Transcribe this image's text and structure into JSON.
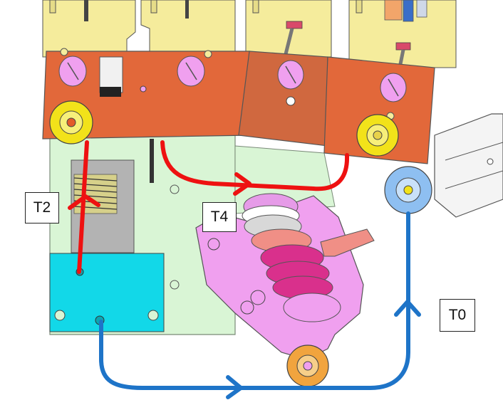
{
  "labels": {
    "t2": "T2",
    "t4": "T4",
    "t0": "T0"
  },
  "colors": {
    "arm_orange": "#e2683a",
    "arm_dark_orange": "#d0683f",
    "yellow_part": "#f5ec9c",
    "green_plate": "#d9f5d5",
    "cyan_block": "#12d8e8",
    "pink_part": "#f0a0ef",
    "magenta_part": "#d9308c",
    "salmon_part": "#f08f86",
    "red_arrow": "#ee1111",
    "blue_arrow": "#1e74c8",
    "roller_yellow": "#f2e21a",
    "roller_orange": "#f1a43e",
    "roller_blue": "#8ebff1"
  },
  "paths": [
    {
      "name": "path-t2",
      "color": "red",
      "direction": "up"
    },
    {
      "name": "path-t4",
      "color": "red",
      "direction": "right"
    },
    {
      "name": "path-t0",
      "color": "blue",
      "direction": "up"
    }
  ]
}
